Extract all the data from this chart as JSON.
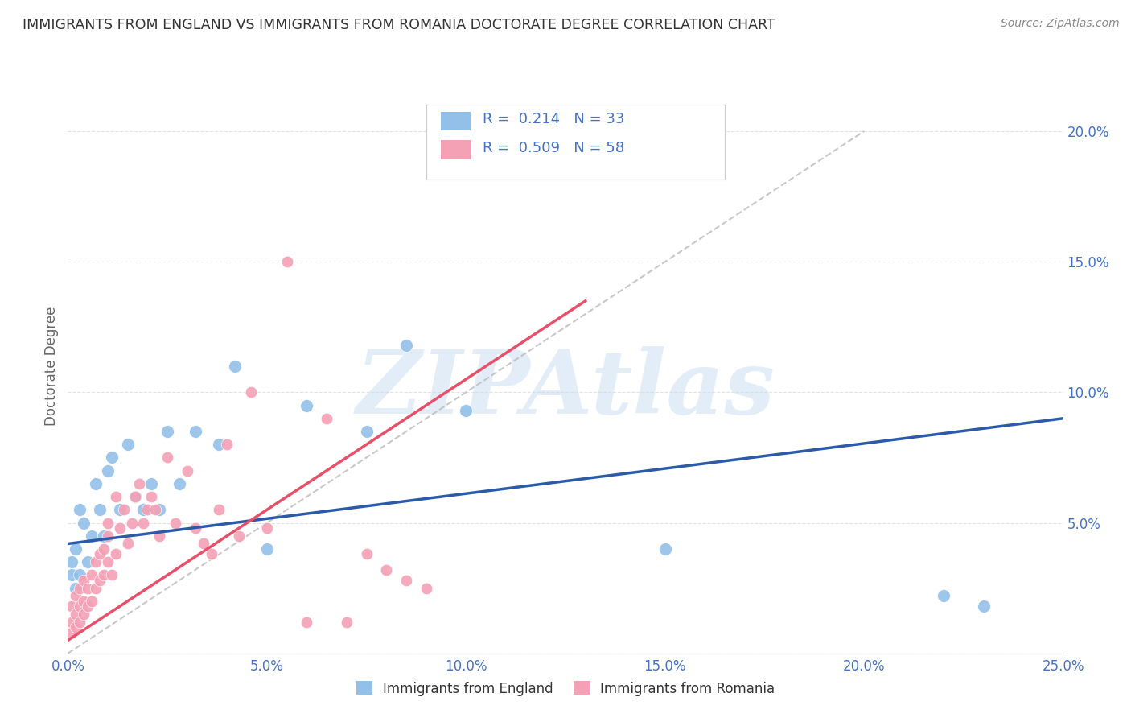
{
  "title": "IMMIGRANTS FROM ENGLAND VS IMMIGRANTS FROM ROMANIA DOCTORATE DEGREE CORRELATION CHART",
  "source": "Source: ZipAtlas.com",
  "ylabel": "Doctorate Degree",
  "xlim": [
    0.0,
    0.25
  ],
  "ylim": [
    0.0,
    0.22
  ],
  "xticks": [
    0.0,
    0.05,
    0.1,
    0.15,
    0.2,
    0.25
  ],
  "yticks": [
    0.0,
    0.05,
    0.1,
    0.15,
    0.2
  ],
  "xtick_labels": [
    "0.0%",
    "5.0%",
    "10.0%",
    "15.0%",
    "20.0%",
    "25.0%"
  ],
  "ytick_labels": [
    "",
    "5.0%",
    "10.0%",
    "15.0%",
    "20.0%"
  ],
  "england_color": "#92C0E8",
  "romania_color": "#F4A0B5",
  "england_line_color": "#2B5BA8",
  "romania_line_color": "#E8506A",
  "england_R": 0.214,
  "england_N": 33,
  "romania_R": 0.509,
  "romania_N": 58,
  "legend_label_england": "Immigrants from England",
  "legend_label_romania": "Immigrants from Romania",
  "watermark": "ZIPAtlas",
  "england_x": [
    0.001,
    0.001,
    0.002,
    0.002,
    0.003,
    0.003,
    0.004,
    0.005,
    0.006,
    0.007,
    0.008,
    0.009,
    0.01,
    0.011,
    0.013,
    0.015,
    0.017,
    0.019,
    0.021,
    0.023,
    0.025,
    0.028,
    0.032,
    0.038,
    0.042,
    0.05,
    0.06,
    0.075,
    0.085,
    0.1,
    0.15,
    0.22,
    0.23
  ],
  "england_y": [
    0.03,
    0.035,
    0.025,
    0.04,
    0.055,
    0.03,
    0.05,
    0.035,
    0.045,
    0.065,
    0.055,
    0.045,
    0.07,
    0.075,
    0.055,
    0.08,
    0.06,
    0.055,
    0.065,
    0.055,
    0.085,
    0.065,
    0.085,
    0.08,
    0.11,
    0.04,
    0.095,
    0.085,
    0.118,
    0.093,
    0.04,
    0.022,
    0.018
  ],
  "romania_x": [
    0.001,
    0.001,
    0.001,
    0.002,
    0.002,
    0.002,
    0.003,
    0.003,
    0.003,
    0.004,
    0.004,
    0.004,
    0.005,
    0.005,
    0.006,
    0.006,
    0.007,
    0.007,
    0.008,
    0.008,
    0.009,
    0.009,
    0.01,
    0.01,
    0.011,
    0.012,
    0.013,
    0.014,
    0.015,
    0.016,
    0.017,
    0.018,
    0.019,
    0.02,
    0.021,
    0.022,
    0.023,
    0.025,
    0.027,
    0.03,
    0.032,
    0.034,
    0.036,
    0.038,
    0.04,
    0.043,
    0.046,
    0.05,
    0.055,
    0.06,
    0.065,
    0.07,
    0.075,
    0.08,
    0.085,
    0.09,
    0.01,
    0.012
  ],
  "romania_y": [
    0.008,
    0.012,
    0.018,
    0.01,
    0.015,
    0.022,
    0.012,
    0.018,
    0.025,
    0.015,
    0.02,
    0.028,
    0.018,
    0.025,
    0.02,
    0.03,
    0.025,
    0.035,
    0.028,
    0.038,
    0.03,
    0.04,
    0.035,
    0.045,
    0.03,
    0.038,
    0.048,
    0.055,
    0.042,
    0.05,
    0.06,
    0.065,
    0.05,
    0.055,
    0.06,
    0.055,
    0.045,
    0.075,
    0.05,
    0.07,
    0.048,
    0.042,
    0.038,
    0.055,
    0.08,
    0.045,
    0.1,
    0.048,
    0.15,
    0.012,
    0.09,
    0.012,
    0.038,
    0.032,
    0.028,
    0.025,
    0.05,
    0.06
  ],
  "background_color": "#FFFFFF",
  "grid_color": "#DDDDDD"
}
